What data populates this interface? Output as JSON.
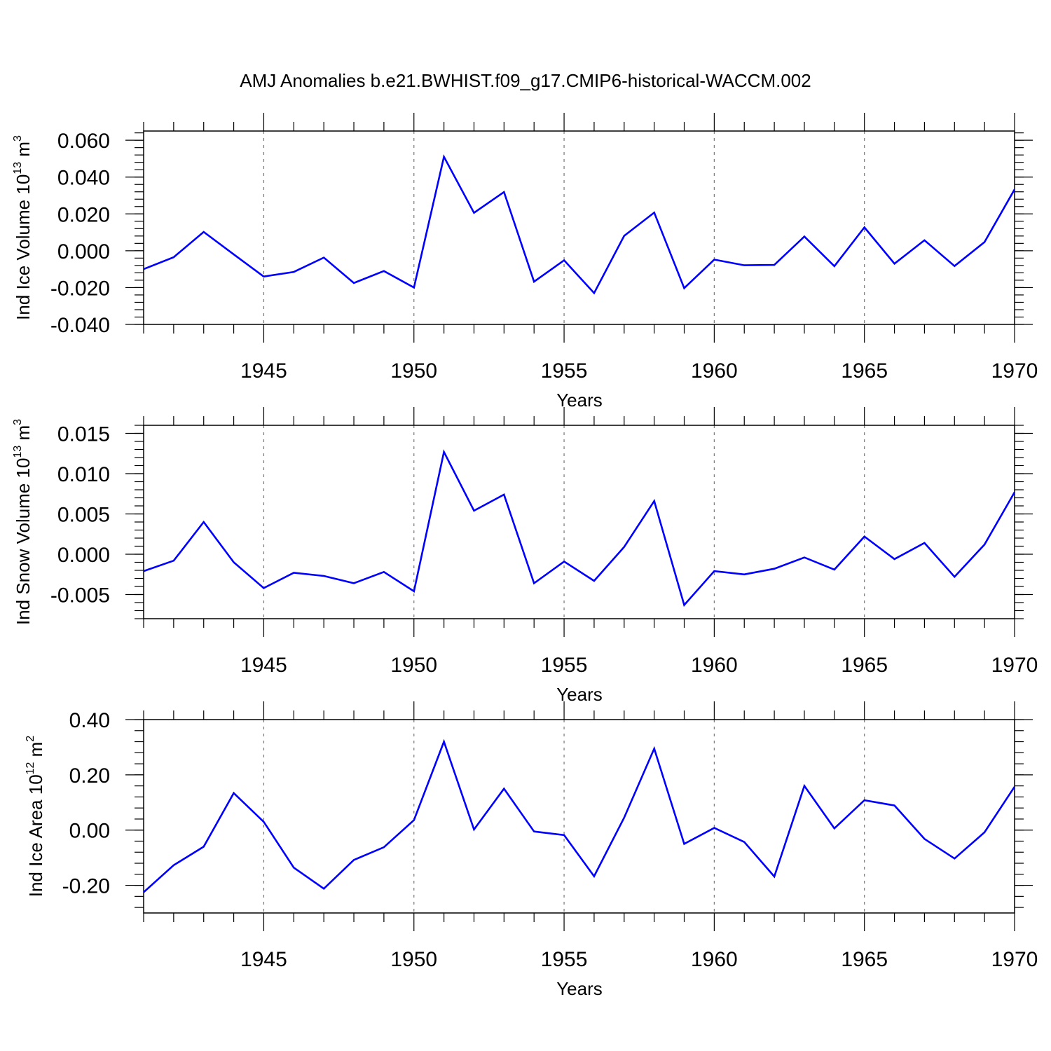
{
  "title": "AMJ Anomalies b.e21.BWHIST.f09_g17.CMIP6-historical-WACCM.002",
  "colors": {
    "line": "#0000ff",
    "axis": "#000000",
    "grid": "#777777"
  },
  "chart_data": [
    {
      "type": "line",
      "xlabel": "Years",
      "ylabel_text": "Ind Ice Volume 10",
      "ylabel_exp": "13",
      "ylabel_unit": " m",
      "ylabel_unit_exp": "3",
      "xlim": [
        1941,
        1970
      ],
      "ylim": [
        -0.04,
        0.065
      ],
      "yticks": [
        -0.04,
        -0.02,
        0.0,
        0.02,
        0.04,
        0.06
      ],
      "ytick_labels": [
        "-0.040",
        "-0.020",
        "0.000",
        "0.020",
        "0.040",
        "0.060"
      ],
      "xticks": [
        1945,
        1950,
        1955,
        1960,
        1965,
        1970
      ],
      "xtick_labels": [
        "1945",
        "1950",
        "1955",
        "1960",
        "1965",
        "1970"
      ],
      "grid": "x-dashed",
      "x": [
        1941,
        1942,
        1943,
        1944,
        1945,
        1946,
        1947,
        1948,
        1949,
        1950,
        1951,
        1952,
        1953,
        1954,
        1955,
        1956,
        1957,
        1958,
        1959,
        1960,
        1961,
        1962,
        1963,
        1964,
        1965,
        1966,
        1967,
        1968,
        1969,
        1970
      ],
      "series": [
        {
          "values": [
            -0.01,
            -0.0035,
            0.0102,
            -0.002,
            -0.014,
            -0.0115,
            -0.0037,
            -0.0175,
            -0.011,
            -0.02,
            0.051,
            0.0206,
            0.0319,
            -0.0168,
            -0.0052,
            -0.023,
            0.0081,
            0.0207,
            -0.0203,
            -0.0048,
            -0.0079,
            -0.0077,
            0.0077,
            -0.0084,
            0.0127,
            -0.007,
            0.0057,
            -0.0083,
            0.0047,
            0.0333
          ]
        }
      ]
    },
    {
      "type": "line",
      "xlabel": "Years",
      "ylabel_text": "Ind Snow Volume 10",
      "ylabel_exp": "13",
      "ylabel_unit": " m",
      "ylabel_unit_exp": "3",
      "xlim": [
        1941,
        1970
      ],
      "ylim": [
        -0.008,
        0.016
      ],
      "yticks": [
        -0.005,
        0.0,
        0.005,
        0.01,
        0.015
      ],
      "ytick_labels": [
        "-0.005",
        "0.000",
        "0.005",
        "0.010",
        "0.015"
      ],
      "xticks": [
        1945,
        1950,
        1955,
        1960,
        1965,
        1970
      ],
      "xtick_labels": [
        "1945",
        "1950",
        "1955",
        "1960",
        "1965",
        "1970"
      ],
      "grid": "x-dashed",
      "x": [
        1941,
        1942,
        1943,
        1944,
        1945,
        1946,
        1947,
        1948,
        1949,
        1950,
        1951,
        1952,
        1953,
        1954,
        1955,
        1956,
        1957,
        1958,
        1959,
        1960,
        1961,
        1962,
        1963,
        1964,
        1965,
        1966,
        1967,
        1968,
        1969,
        1970
      ],
      "series": [
        {
          "values": [
            -0.0021,
            -0.0008,
            0.004,
            -0.001,
            -0.0042,
            -0.0023,
            -0.0027,
            -0.0036,
            -0.0022,
            -0.0046,
            0.0127,
            0.0054,
            0.0074,
            -0.0036,
            -0.0009,
            -0.0033,
            0.0009,
            0.0066,
            -0.0063,
            -0.0021,
            -0.0025,
            -0.0018,
            -0.0004,
            -0.0019,
            0.0022,
            -0.0006,
            0.0014,
            -0.0028,
            0.0012,
            0.0077
          ]
        }
      ]
    },
    {
      "type": "line",
      "xlabel": "Years",
      "ylabel_text": "Ind Ice Area 10",
      "ylabel_exp": "12",
      "ylabel_unit": " m",
      "ylabel_unit_exp": "2",
      "xlim": [
        1941,
        1970
      ],
      "ylim": [
        -0.3,
        0.4
      ],
      "yticks": [
        -0.2,
        0.0,
        0.2,
        0.4
      ],
      "ytick_labels": [
        "-0.20",
        "0.00",
        "0.20",
        "0.40"
      ],
      "xticks": [
        1945,
        1950,
        1955,
        1960,
        1965,
        1970
      ],
      "xtick_labels": [
        "1945",
        "1950",
        "1955",
        "1960",
        "1965",
        "1970"
      ],
      "grid": "x-dashed",
      "x": [
        1941,
        1942,
        1943,
        1944,
        1945,
        1946,
        1947,
        1948,
        1949,
        1950,
        1951,
        1952,
        1953,
        1954,
        1955,
        1956,
        1957,
        1958,
        1959,
        1960,
        1961,
        1962,
        1963,
        1964,
        1965,
        1966,
        1967,
        1968,
        1969,
        1970
      ],
      "series": [
        {
          "values": [
            -0.225,
            -0.127,
            -0.06,
            0.134,
            0.03,
            -0.136,
            -0.212,
            -0.108,
            -0.062,
            0.036,
            0.32,
            0.002,
            0.15,
            -0.005,
            -0.018,
            -0.167,
            0.045,
            0.295,
            -0.05,
            0.008,
            -0.043,
            -0.168,
            0.16,
            0.006,
            0.108,
            0.089,
            -0.032,
            -0.103,
            -0.008,
            0.157
          ]
        }
      ]
    }
  ]
}
